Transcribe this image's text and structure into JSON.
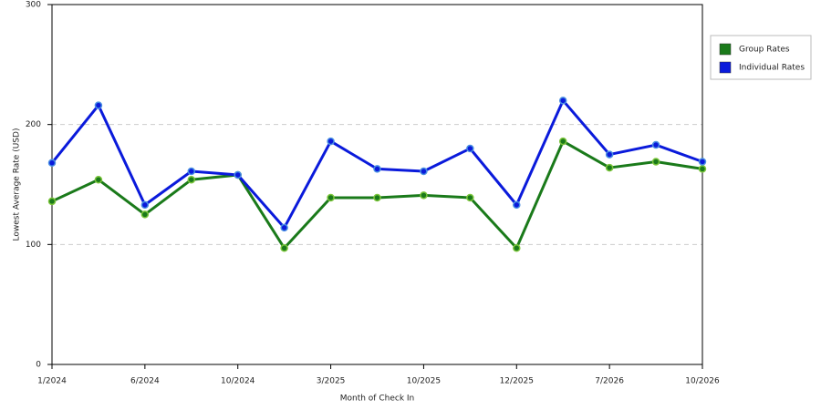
{
  "chart_data": {
    "type": "line",
    "x_label": "Month of Check In",
    "y_label": "Lowest Average Rate (USD)",
    "categories": [
      "1/2024",
      null,
      "6/2024",
      null,
      "10/2024",
      null,
      "3/2025",
      null,
      "10/2025",
      null,
      "12/2025",
      null,
      "7/2026",
      null,
      "10/2026"
    ],
    "series": [
      {
        "name": "Group Rates",
        "color": "#1a7a1a",
        "values": [
          136,
          154,
          125,
          154,
          158,
          97,
          139,
          139,
          141,
          139,
          97,
          186,
          164,
          169,
          163
        ]
      },
      {
        "name": "Individual Rates",
        "color": "#0a1adb",
        "values": [
          168,
          216,
          133,
          161,
          158,
          114,
          186,
          163,
          161,
          180,
          133,
          220,
          175,
          183,
          169
        ]
      }
    ],
    "ylim": [
      0,
      300
    ],
    "yticks": [
      0,
      100,
      200,
      300
    ],
    "grid": true,
    "legend": "right"
  }
}
